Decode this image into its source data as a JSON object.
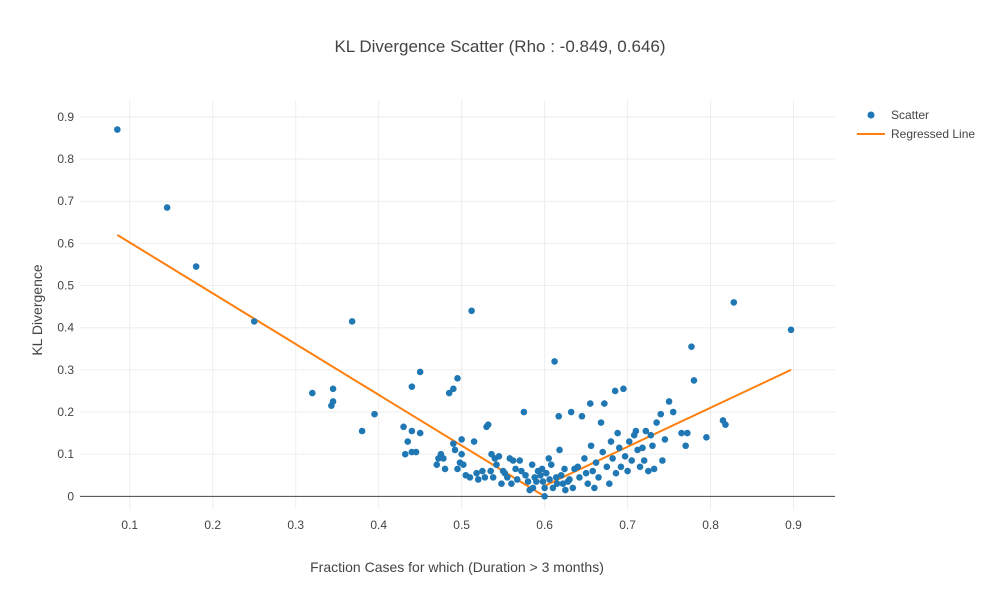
{
  "chart_data": {
    "type": "scatter",
    "title": "KL Divergence Scatter (Rho : -0.849, 0.646)",
    "xlabel": "Fraction Cases for which (Duration > 3 months)",
    "ylabel": "KL Divergence",
    "xlim": [
      0.04,
      0.95
    ],
    "ylim": [
      -0.03,
      0.94
    ],
    "xticks": [
      "0.1",
      "0.2",
      "0.3",
      "0.4",
      "0.5",
      "0.6",
      "0.7",
      "0.8",
      "0.9"
    ],
    "yticks": [
      "0",
      "0.1",
      "0.2",
      "0.3",
      "0.4",
      "0.5",
      "0.6",
      "0.7",
      "0.8",
      "0.9"
    ],
    "grid": true,
    "legend_position": "top-right",
    "colors": {
      "scatter": "#1f77b4",
      "line": "#ff7f0e"
    },
    "series": [
      {
        "name": "Scatter",
        "mode": "markers",
        "points": [
          [
            0.085,
            0.87
          ],
          [
            0.145,
            0.685
          ],
          [
            0.18,
            0.545
          ],
          [
            0.25,
            0.415
          ],
          [
            0.32,
            0.245
          ],
          [
            0.345,
            0.255
          ],
          [
            0.345,
            0.225
          ],
          [
            0.343,
            0.215
          ],
          [
            0.368,
            0.415
          ],
          [
            0.38,
            0.155
          ],
          [
            0.395,
            0.195
          ],
          [
            0.43,
            0.165
          ],
          [
            0.435,
            0.13
          ],
          [
            0.44,
            0.26
          ],
          [
            0.44,
            0.155
          ],
          [
            0.45,
            0.295
          ],
          [
            0.45,
            0.15
          ],
          [
            0.432,
            0.1
          ],
          [
            0.44,
            0.105
          ],
          [
            0.445,
            0.105
          ],
          [
            0.47,
            0.075
          ],
          [
            0.472,
            0.09
          ],
          [
            0.475,
            0.1
          ],
          [
            0.478,
            0.09
          ],
          [
            0.48,
            0.065
          ],
          [
            0.485,
            0.245
          ],
          [
            0.49,
            0.255
          ],
          [
            0.49,
            0.125
          ],
          [
            0.492,
            0.11
          ],
          [
            0.495,
            0.28
          ],
          [
            0.495,
            0.065
          ],
          [
            0.498,
            0.08
          ],
          [
            0.5,
            0.135
          ],
          [
            0.5,
            0.1
          ],
          [
            0.502,
            0.075
          ],
          [
            0.505,
            0.05
          ],
          [
            0.51,
            0.045
          ],
          [
            0.512,
            0.44
          ],
          [
            0.515,
            0.13
          ],
          [
            0.518,
            0.055
          ],
          [
            0.52,
            0.04
          ],
          [
            0.525,
            0.06
          ],
          [
            0.528,
            0.045
          ],
          [
            0.53,
            0.165
          ],
          [
            0.532,
            0.17
          ],
          [
            0.535,
            0.06
          ],
          [
            0.536,
            0.1
          ],
          [
            0.538,
            0.045
          ],
          [
            0.54,
            0.09
          ],
          [
            0.542,
            0.075
          ],
          [
            0.545,
            0.095
          ],
          [
            0.548,
            0.03
          ],
          [
            0.55,
            0.06
          ],
          [
            0.552,
            0.055
          ],
          [
            0.555,
            0.045
          ],
          [
            0.558,
            0.09
          ],
          [
            0.56,
            0.03
          ],
          [
            0.562,
            0.085
          ],
          [
            0.565,
            0.065
          ],
          [
            0.567,
            0.04
          ],
          [
            0.57,
            0.085
          ],
          [
            0.572,
            0.06
          ],
          [
            0.575,
            0.2
          ],
          [
            0.577,
            0.05
          ],
          [
            0.58,
            0.035
          ],
          [
            0.582,
            0.015
          ],
          [
            0.585,
            0.075
          ],
          [
            0.586,
            0.02
          ],
          [
            0.588,
            0.045
          ],
          [
            0.59,
            0.035
          ],
          [
            0.592,
            0.06
          ],
          [
            0.595,
            0.05
          ],
          [
            0.597,
            0.065
          ],
          [
            0.598,
            0.035
          ],
          [
            0.6,
            0.02
          ],
          [
            0.6,
            0.0
          ],
          [
            0.602,
            0.055
          ],
          [
            0.605,
            0.09
          ],
          [
            0.606,
            0.04
          ],
          [
            0.608,
            0.075
          ],
          [
            0.61,
            0.02
          ],
          [
            0.612,
            0.32
          ],
          [
            0.614,
            0.045
          ],
          [
            0.615,
            0.03
          ],
          [
            0.617,
            0.19
          ],
          [
            0.618,
            0.11
          ],
          [
            0.62,
            0.05
          ],
          [
            0.622,
            0.03
          ],
          [
            0.624,
            0.065
          ],
          [
            0.625,
            0.015
          ],
          [
            0.628,
            0.035
          ],
          [
            0.63,
            0.04
          ],
          [
            0.632,
            0.2
          ],
          [
            0.634,
            0.02
          ],
          [
            0.636,
            0.065
          ],
          [
            0.64,
            0.07
          ],
          [
            0.642,
            0.045
          ],
          [
            0.645,
            0.19
          ],
          [
            0.648,
            0.09
          ],
          [
            0.65,
            0.055
          ],
          [
            0.652,
            0.03
          ],
          [
            0.655,
            0.22
          ],
          [
            0.656,
            0.12
          ],
          [
            0.658,
            0.06
          ],
          [
            0.66,
            0.02
          ],
          [
            0.662,
            0.08
          ],
          [
            0.665,
            0.045
          ],
          [
            0.668,
            0.175
          ],
          [
            0.67,
            0.105
          ],
          [
            0.672,
            0.22
          ],
          [
            0.675,
            0.07
          ],
          [
            0.678,
            0.03
          ],
          [
            0.68,
            0.13
          ],
          [
            0.682,
            0.09
          ],
          [
            0.685,
            0.25
          ],
          [
            0.686,
            0.055
          ],
          [
            0.688,
            0.15
          ],
          [
            0.69,
            0.115
          ],
          [
            0.692,
            0.07
          ],
          [
            0.695,
            0.255
          ],
          [
            0.697,
            0.095
          ],
          [
            0.7,
            0.06
          ],
          [
            0.702,
            0.13
          ],
          [
            0.705,
            0.085
          ],
          [
            0.708,
            0.145
          ],
          [
            0.71,
            0.155
          ],
          [
            0.712,
            0.11
          ],
          [
            0.715,
            0.07
          ],
          [
            0.718,
            0.115
          ],
          [
            0.72,
            0.085
          ],
          [
            0.722,
            0.155
          ],
          [
            0.725,
            0.06
          ],
          [
            0.728,
            0.145
          ],
          [
            0.73,
            0.12
          ],
          [
            0.732,
            0.065
          ],
          [
            0.735,
            0.175
          ],
          [
            0.74,
            0.195
          ],
          [
            0.742,
            0.085
          ],
          [
            0.745,
            0.135
          ],
          [
            0.75,
            0.225
          ],
          [
            0.755,
            0.2
          ],
          [
            0.765,
            0.15
          ],
          [
            0.77,
            0.12
          ],
          [
            0.772,
            0.15
          ],
          [
            0.777,
            0.355
          ],
          [
            0.78,
            0.275
          ],
          [
            0.795,
            0.14
          ],
          [
            0.815,
            0.18
          ],
          [
            0.818,
            0.17
          ],
          [
            0.828,
            0.46
          ],
          [
            0.897,
            0.395
          ]
        ]
      },
      {
        "name": "Regressed Line",
        "mode": "lines",
        "segments": [
          [
            [
              0.085,
              0.62
            ],
            [
              0.6,
              0.0
            ]
          ],
          [
            [
              0.6,
              0.025
            ],
            [
              0.897,
              0.3
            ]
          ]
        ]
      }
    ]
  }
}
